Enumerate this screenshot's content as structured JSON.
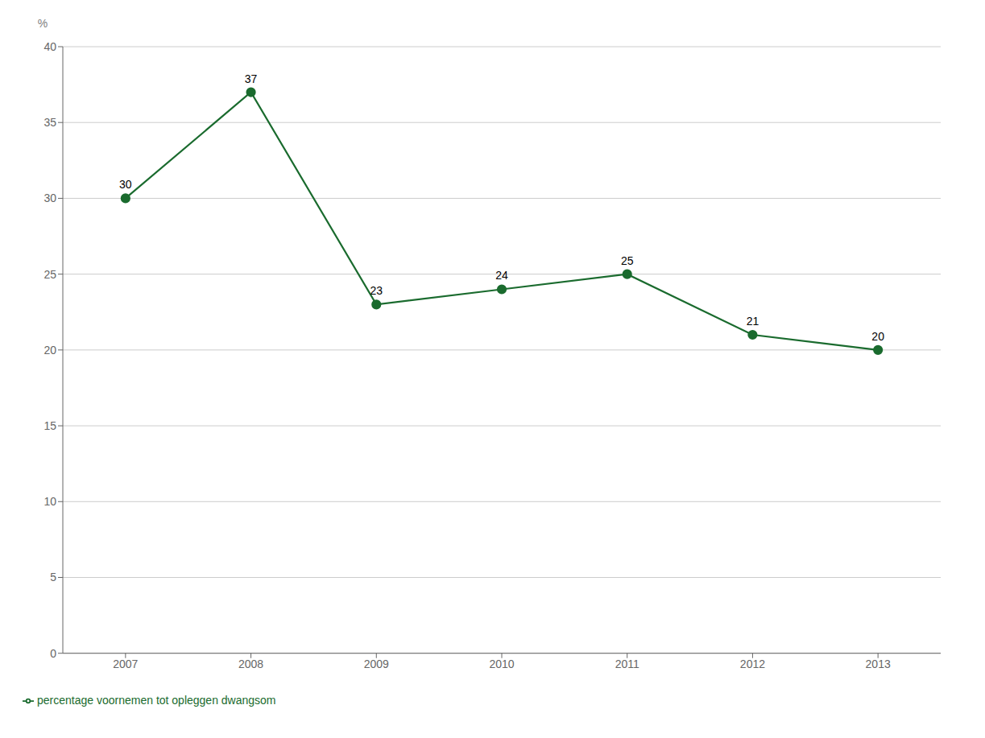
{
  "chart_data": {
    "type": "line",
    "x": [
      2007,
      2008,
      2009,
      2010,
      2011,
      2012,
      2013
    ],
    "series": [
      {
        "name": "percentage voornemen tot opleggen dwangsom",
        "color": "#1a6b2e",
        "values": [
          30,
          37,
          23,
          24,
          25,
          21,
          20
        ],
        "marker": "circle"
      }
    ],
    "ylabel": "%",
    "xlim": [
      2006.5,
      2013.5
    ],
    "xticks": [
      2007,
      2008,
      2009,
      2010,
      2011,
      2012,
      2013
    ],
    "ylim": [
      0,
      40
    ],
    "yticks": [
      0,
      5,
      10,
      15,
      20,
      25,
      30,
      35,
      40
    ],
    "grid": true,
    "data_labels": true,
    "legend": "bottom"
  }
}
